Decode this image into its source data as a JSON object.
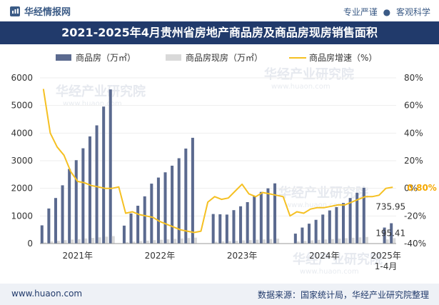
{
  "header": {
    "brand": "华经情报网",
    "tagline_left": "专业严谨",
    "tagline_right": "客观科学",
    "title": "2021-2025年4月贵州省房地产商品房及商品房现房销售面积"
  },
  "footer": {
    "site": "www.huaon.com",
    "source": "数据来源：国家统计局，华经产业研究院整理"
  },
  "watermarks": [
    "华经产业研究院",
    "www.huaon.com"
  ],
  "colors": {
    "area_bar": "#5b6a8f",
    "existing_bar": "#d9d9d9",
    "growth_line": "#f5c022",
    "label_highlight": "#f5a800",
    "title_bg": "#213a6b"
  },
  "chart_data": {
    "type": "bar+line",
    "legend": [
      {
        "name": "商品房（万㎡）",
        "mark": "bar",
        "color": "#5b6a8f"
      },
      {
        "name": "商品房现房（万㎡）",
        "mark": "bar",
        "color": "#d9d9d9"
      },
      {
        "name": "商品房增速（%）",
        "mark": "line",
        "color": "#f5c022"
      }
    ],
    "legend_position": "top",
    "y_left": {
      "ylim": [
        0,
        6000
      ],
      "ticks": [
        0,
        1000,
        2000,
        3000,
        4000,
        5000,
        6000
      ]
    },
    "y_right": {
      "ylim": [
        -40,
        80
      ],
      "ticks": [
        "-40%",
        "-20%",
        "0%",
        "20%",
        "40%",
        "60%",
        "80%"
      ]
    },
    "x_labels": [
      {
        "label": "2021年",
        "index": 5
      },
      {
        "label": "2022年",
        "index": 17
      },
      {
        "label": "2023年",
        "index": 29
      },
      {
        "label": "2024年",
        "index": 41
      },
      {
        "label": "2025年",
        "index": 50
      },
      {
        "label": "1-4月",
        "index": 50
      }
    ],
    "months": [
      "2021-01",
      "2021-02",
      "2021-03",
      "2021-04",
      "2021-05",
      "2021-06",
      "2021-07",
      "2021-08",
      "2021-09",
      "2021-10",
      "2021-11",
      "2021-12",
      "2022-01",
      "2022-02",
      "2022-03",
      "2022-04",
      "2022-05",
      "2022-06",
      "2022-07",
      "2022-08",
      "2022-09",
      "2022-10",
      "2022-11",
      "2022-12",
      "2023-01",
      "2023-02",
      "2023-03",
      "2023-04",
      "2023-05",
      "2023-06",
      "2023-07",
      "2023-08",
      "2023-09",
      "2023-10",
      "2023-11",
      "2023-12",
      "2024-01",
      "2024-02",
      "2024-03",
      "2024-04",
      "2024-05",
      "2024-06",
      "2024-07",
      "2024-08",
      "2024-09",
      "2024-10",
      "2024-11",
      "2024-12",
      "2025-01",
      "2025-02",
      "2025-03",
      "2025-04"
    ],
    "sales_area": [
      660,
      1270,
      1650,
      2110,
      2700,
      3020,
      3450,
      3880,
      4280,
      4960,
      5580,
      null,
      650,
      1090,
      1370,
      1710,
      2170,
      2390,
      2580,
      2820,
      3090,
      3440,
      3830,
      null,
      null,
      1070,
      1060,
      1050,
      1210,
      1350,
      1500,
      1710,
      1870,
      2000,
      2180,
      null,
      null,
      360,
      580,
      720,
      860,
      1050,
      1200,
      1320,
      1470,
      1650,
      1840,
      2020,
      null,
      null,
      580,
      735.95
    ],
    "existing_area": [
      40,
      75,
      100,
      125,
      145,
      160,
      185,
      205,
      225,
      250,
      270,
      null,
      50,
      70,
      90,
      105,
      125,
      140,
      155,
      170,
      185,
      200,
      215,
      null,
      null,
      65,
      80,
      90,
      100,
      115,
      125,
      140,
      150,
      165,
      180,
      null,
      null,
      75,
      95,
      115,
      135,
      150,
      165,
      180,
      195,
      210,
      225,
      240,
      null,
      null,
      150,
      195.41
    ],
    "growth_rate": [
      72,
      40,
      30,
      24,
      12,
      5,
      4,
      2,
      1,
      0,
      0,
      1,
      -18,
      -17,
      -19,
      -20,
      -21,
      -24,
      -26,
      -28,
      -30,
      -31,
      -32,
      -31,
      -10,
      -6,
      -8,
      -7,
      -2,
      3,
      -4,
      -6,
      -3,
      -4,
      -5,
      -6,
      -20,
      -17,
      -18,
      -15,
      -14,
      -14,
      -13,
      -12,
      -12,
      -10,
      -8,
      -6,
      -6,
      -5,
      0,
      0.8
    ],
    "annotations": [
      {
        "text": "0.80%",
        "index": 51,
        "series": "growth_rate"
      },
      {
        "text": "735.95",
        "index": 51,
        "series": "sales_area"
      },
      {
        "text": "195.41",
        "index": 51,
        "series": "existing_area"
      }
    ]
  }
}
